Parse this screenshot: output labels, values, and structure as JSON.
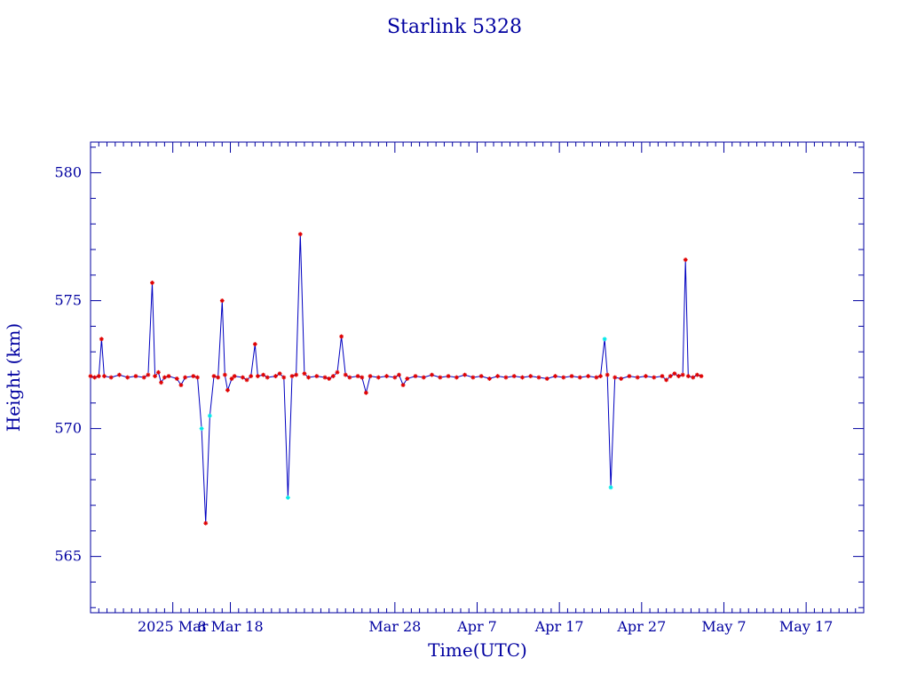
{
  "chart_data": {
    "type": "line",
    "title": "Starlink 5328",
    "xlabel": "Time(UTC)",
    "ylabel": "Height (km)",
    "x_is_date": true,
    "xlim": [
      "2025-02-19",
      "2025-05-24"
    ],
    "ylim": [
      562.8,
      581.2
    ],
    "x_ticks": [
      {
        "date": "2025-03-01",
        "label": "2025 Mar"
      },
      {
        "date": "2025-03-08",
        "label": "8 Mar 18"
      },
      {
        "date": "2025-03-28",
        "label": "Mar 28"
      },
      {
        "date": "2025-04-07",
        "label": "Apr  7"
      },
      {
        "date": "2025-04-17",
        "label": "Apr 17"
      },
      {
        "date": "2025-04-27",
        "label": "Apr 27"
      },
      {
        "date": "2025-05-07",
        "label": "May  7"
      },
      {
        "date": "2025-05-17",
        "label": "May 17"
      }
    ],
    "y_ticks": [
      565,
      570,
      575,
      580
    ],
    "grid": false,
    "colors": {
      "axes": "#0000a0",
      "line": "#0000c0",
      "marker_red": "#e00000",
      "marker_cyan": "#00e8e8"
    },
    "series": [
      {
        "points": [
          [
            "2025-02-19T00:00",
            572.05
          ],
          [
            "2025-02-19T12:00",
            572.0
          ],
          [
            "2025-02-20T00:00",
            572.05
          ],
          [
            "2025-02-20T08:00",
            573.5
          ],
          [
            "2025-02-20T16:00",
            572.05
          ],
          [
            "2025-02-21T12:00",
            572.0
          ],
          [
            "2025-02-22T12:00",
            572.1
          ],
          [
            "2025-02-23T12:00",
            572.0
          ],
          [
            "2025-02-24T12:00",
            572.05
          ],
          [
            "2025-02-25T12:00",
            572.0
          ],
          [
            "2025-02-26T00:00",
            572.1
          ],
          [
            "2025-02-26T12:00",
            575.7
          ],
          [
            "2025-02-26T20:00",
            572.05
          ],
          [
            "2025-02-27T06:00",
            572.2
          ],
          [
            "2025-02-27T14:00",
            571.8
          ],
          [
            "2025-02-28T00:00",
            572.0
          ],
          [
            "2025-02-28T12:00",
            572.05
          ],
          [
            "2025-03-01T12:00",
            571.95
          ],
          [
            "2025-03-02T00:00",
            571.7
          ],
          [
            "2025-03-02T12:00",
            572.0
          ],
          [
            "2025-03-03T12:00",
            572.05
          ],
          [
            "2025-03-04T00:00",
            572.0
          ],
          [
            "2025-03-04T12:00",
            570.0
          ],
          [
            "2025-03-05T00:00",
            566.3
          ],
          [
            "2025-03-05T12:00",
            570.5
          ],
          [
            "2025-03-06T00:00",
            572.05
          ],
          [
            "2025-03-06T12:00",
            572.0
          ],
          [
            "2025-03-07T00:00",
            575.0
          ],
          [
            "2025-03-07T08:00",
            572.1
          ],
          [
            "2025-03-07T16:00",
            571.5
          ],
          [
            "2025-03-08T04:00",
            571.95
          ],
          [
            "2025-03-08T12:00",
            572.05
          ],
          [
            "2025-03-09T12:00",
            572.0
          ],
          [
            "2025-03-10T00:00",
            571.9
          ],
          [
            "2025-03-10T12:00",
            572.05
          ],
          [
            "2025-03-11T00:00",
            573.3
          ],
          [
            "2025-03-11T08:00",
            572.05
          ],
          [
            "2025-03-12T00:00",
            572.1
          ],
          [
            "2025-03-12T12:00",
            572.0
          ],
          [
            "2025-03-13T12:00",
            572.05
          ],
          [
            "2025-03-14T00:00",
            572.15
          ],
          [
            "2025-03-14T12:00",
            572.0
          ],
          [
            "2025-03-15T00:00",
            567.3
          ],
          [
            "2025-03-15T12:00",
            572.05
          ],
          [
            "2025-03-16T00:00",
            572.1
          ],
          [
            "2025-03-16T12:00",
            577.6
          ],
          [
            "2025-03-17T00:00",
            572.15
          ],
          [
            "2025-03-17T12:00",
            572.0
          ],
          [
            "2025-03-18T12:00",
            572.05
          ],
          [
            "2025-03-19T12:00",
            572.0
          ],
          [
            "2025-03-20T00:00",
            571.95
          ],
          [
            "2025-03-20T12:00",
            572.05
          ],
          [
            "2025-03-21T00:00",
            572.2
          ],
          [
            "2025-03-21T12:00",
            573.6
          ],
          [
            "2025-03-22T00:00",
            572.1
          ],
          [
            "2025-03-22T12:00",
            572.0
          ],
          [
            "2025-03-23T12:00",
            572.05
          ],
          [
            "2025-03-24T00:00",
            572.0
          ],
          [
            "2025-03-24T12:00",
            571.4
          ],
          [
            "2025-03-25T00:00",
            572.05
          ],
          [
            "2025-03-26T00:00",
            572.0
          ],
          [
            "2025-03-27T00:00",
            572.05
          ],
          [
            "2025-03-28T00:00",
            572.0
          ],
          [
            "2025-03-28T12:00",
            572.1
          ],
          [
            "2025-03-29T00:00",
            571.7
          ],
          [
            "2025-03-29T12:00",
            571.95
          ],
          [
            "2025-03-30T12:00",
            572.05
          ],
          [
            "2025-03-31T12:00",
            572.0
          ],
          [
            "2025-04-01T12:00",
            572.1
          ],
          [
            "2025-04-02T12:00",
            572.0
          ],
          [
            "2025-04-03T12:00",
            572.05
          ],
          [
            "2025-04-04T12:00",
            572.0
          ],
          [
            "2025-04-05T12:00",
            572.1
          ],
          [
            "2025-04-06T12:00",
            572.0
          ],
          [
            "2025-04-07T12:00",
            572.05
          ],
          [
            "2025-04-08T12:00",
            571.95
          ],
          [
            "2025-04-09T12:00",
            572.05
          ],
          [
            "2025-04-10T12:00",
            572.0
          ],
          [
            "2025-04-11T12:00",
            572.05
          ],
          [
            "2025-04-12T12:00",
            572.0
          ],
          [
            "2025-04-13T12:00",
            572.05
          ],
          [
            "2025-04-14T12:00",
            572.0
          ],
          [
            "2025-04-15T12:00",
            571.95
          ],
          [
            "2025-04-16T12:00",
            572.05
          ],
          [
            "2025-04-17T12:00",
            572.0
          ],
          [
            "2025-04-18T12:00",
            572.05
          ],
          [
            "2025-04-19T12:00",
            572.0
          ],
          [
            "2025-04-20T12:00",
            572.05
          ],
          [
            "2025-04-21T12:00",
            572.0
          ],
          [
            "2025-04-22T00:00",
            572.05
          ],
          [
            "2025-04-22T12:00",
            573.5
          ],
          [
            "2025-04-22T20:00",
            572.1
          ],
          [
            "2025-04-23T06:00",
            567.7
          ],
          [
            "2025-04-23T18:00",
            572.0
          ],
          [
            "2025-04-24T12:00",
            571.95
          ],
          [
            "2025-04-25T12:00",
            572.05
          ],
          [
            "2025-04-26T12:00",
            572.0
          ],
          [
            "2025-04-27T12:00",
            572.05
          ],
          [
            "2025-04-28T12:00",
            572.0
          ],
          [
            "2025-04-29T12:00",
            572.05
          ],
          [
            "2025-04-30T00:00",
            571.9
          ],
          [
            "2025-04-30T12:00",
            572.05
          ],
          [
            "2025-05-01T00:00",
            572.15
          ],
          [
            "2025-05-01T12:00",
            572.05
          ],
          [
            "2025-05-02T00:00",
            572.1
          ],
          [
            "2025-05-02T08:00",
            576.6
          ],
          [
            "2025-05-02T16:00",
            572.05
          ],
          [
            "2025-05-03T06:00",
            572.0
          ],
          [
            "2025-05-03T18:00",
            572.1
          ],
          [
            "2025-05-04T06:00",
            572.05
          ]
        ]
      }
    ]
  }
}
